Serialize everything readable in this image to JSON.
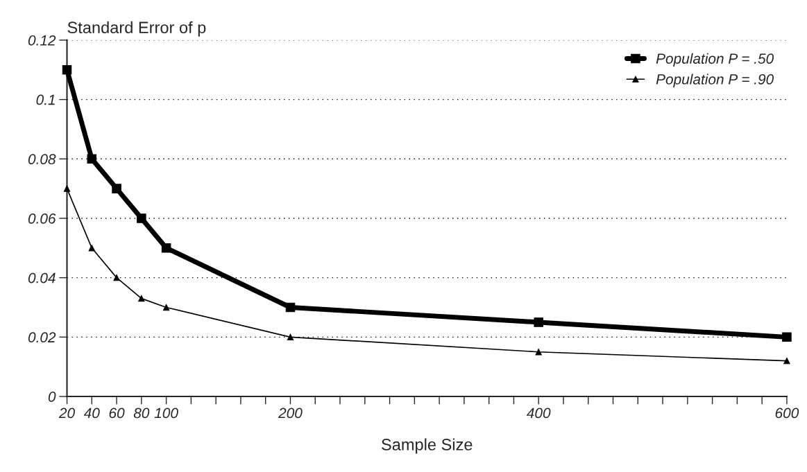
{
  "chart_data": {
    "type": "line",
    "ylabel": "Standard Error of p",
    "xlabel": "Sample Size",
    "xlim": [
      20,
      600
    ],
    "xticks": [
      20,
      40,
      60,
      80,
      {
        "value": 100,
        "label": "100"
      },
      {
        "value": 120,
        "label": null
      },
      {
        "value": 140,
        "label": null
      },
      {
        "value": 160,
        "label": null
      },
      {
        "value": 180,
        "label": null
      },
      200,
      {
        "value": 220,
        "label": null
      },
      {
        "value": 240,
        "label": null
      },
      {
        "value": 260,
        "label": null
      },
      {
        "value": 280,
        "label": null
      },
      {
        "value": 300,
        "label": null
      },
      {
        "value": 320,
        "label": null
      },
      {
        "value": 340,
        "label": null
      },
      {
        "value": 360,
        "label": null
      },
      {
        "value": 380,
        "label": null
      },
      400,
      {
        "value": 420,
        "label": null
      },
      {
        "value": 440,
        "label": null
      },
      {
        "value": 460,
        "label": null
      },
      {
        "value": 480,
        "label": null
      },
      {
        "value": 500,
        "label": null
      },
      {
        "value": 520,
        "label": null
      },
      {
        "value": 540,
        "label": null
      },
      {
        "value": 560,
        "label": null
      },
      {
        "value": 580,
        "label": null
      },
      600
    ],
    "ylim": [
      0,
      0.12
    ],
    "yticks": [
      0,
      0.02,
      0.04,
      0.06,
      0.08,
      0.1,
      0.12
    ],
    "x": [
      20,
      40,
      60,
      80,
      100,
      200,
      400,
      600
    ],
    "series": [
      {
        "name": "Population P = .50",
        "color": "#000000",
        "marker": "square",
        "values": [
          0.11,
          0.08,
          0.07,
          0.06,
          0.05,
          0.03,
          0.025,
          0.02
        ]
      },
      {
        "name": "Population P = .90",
        "color": "#000000",
        "marker": "triangle",
        "values": [
          0.07,
          0.05,
          0.04,
          0.033,
          0.03,
          0.02,
          0.015,
          0.012
        ]
      }
    ],
    "grid": "y",
    "legend": "top right",
    "line_style": "solid"
  }
}
